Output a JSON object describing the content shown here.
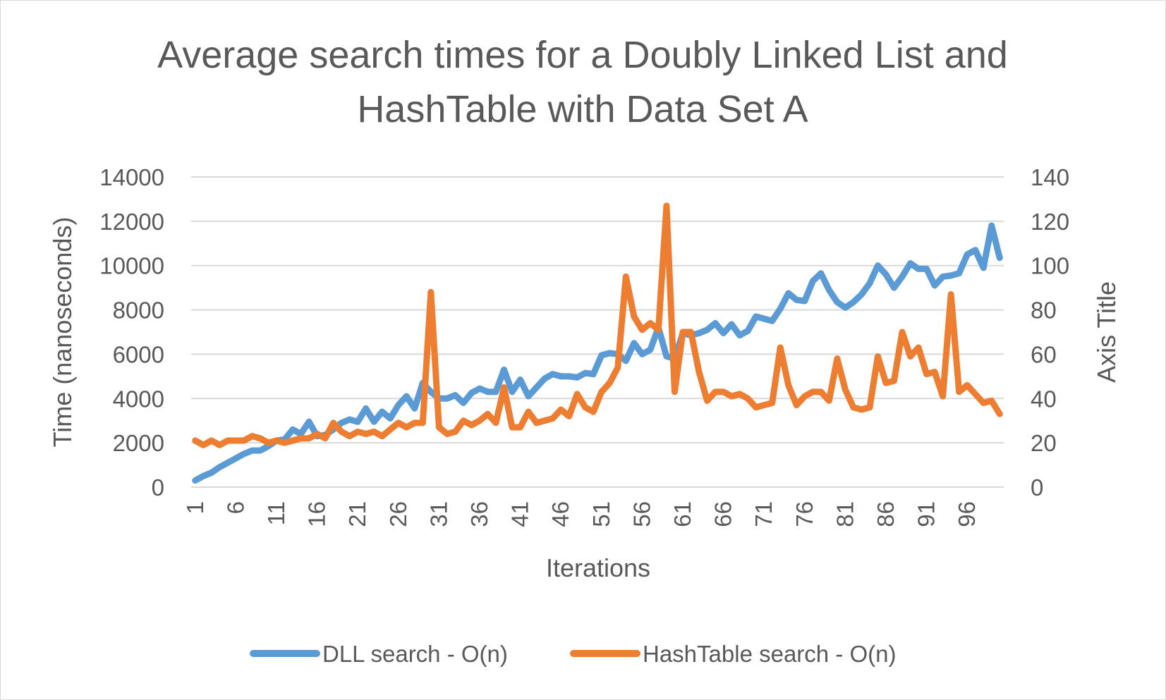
{
  "chart_data": {
    "type": "line",
    "title": "Average search times for a Doubly Linked List and HashTable with Data Set A",
    "title_lines": [
      "Average search times for a Doubly Linked List and",
      "HashTable with Data Set A"
    ],
    "xlabel": "Iterations",
    "ylabel": "Time (nanoseconds)",
    "y2label": "Axis Title",
    "ylim": [
      0,
      14000
    ],
    "y2lim": [
      0,
      140
    ],
    "yticks": [
      "0",
      "2000",
      "4000",
      "6000",
      "8000",
      "10000",
      "12000",
      "14000"
    ],
    "y2ticks": [
      "0",
      "20",
      "40",
      "60",
      "80",
      "100",
      "120",
      "140"
    ],
    "xticks": [
      "1",
      "6",
      "11",
      "16",
      "21",
      "26",
      "31",
      "36",
      "41",
      "46",
      "51",
      "56",
      "61",
      "66",
      "71",
      "76",
      "81",
      "86",
      "91",
      "96"
    ],
    "x_start": 1,
    "x_end": 100,
    "grid": true,
    "legend_position": "bottom",
    "series": [
      {
        "name": "DLL search - O(n)",
        "axis": "left",
        "color": "#5b9bd5",
        "values": [
          300,
          500,
          650,
          900,
          1100,
          1300,
          1500,
          1650,
          1650,
          1850,
          2100,
          2150,
          2600,
          2400,
          2950,
          2300,
          2350,
          2600,
          2900,
          3050,
          2950,
          3550,
          2950,
          3400,
          3100,
          3700,
          4100,
          3550,
          4700,
          4300,
          4000,
          4000,
          4150,
          3800,
          4250,
          4450,
          4300,
          4300,
          5300,
          4300,
          4850,
          4100,
          4500,
          4900,
          5100,
          5000,
          5000,
          4950,
          5150,
          5100,
          5950,
          6050,
          6000,
          5700,
          6500,
          6000,
          6200,
          7200,
          5900,
          5800,
          6950,
          6850,
          6950,
          7100,
          7400,
          6950,
          7350,
          6850,
          7050,
          7700,
          7600,
          7500,
          8050,
          8750,
          8450,
          8400,
          9300,
          9650,
          8900,
          8350,
          8100,
          8350,
          8700,
          9200,
          10000,
          9600,
          9000,
          9500,
          10100,
          9850,
          9850,
          9100,
          9500,
          9550,
          9650,
          10500,
          10700,
          9900,
          11800,
          10350
        ]
      },
      {
        "name": "HashTable search - O(n)",
        "axis": "right",
        "color": "#ed7d31",
        "values": [
          21,
          19,
          21,
          19,
          21,
          21,
          21,
          23,
          22,
          20,
          21,
          20,
          21,
          22,
          22,
          24,
          22,
          29,
          25,
          23,
          25,
          24,
          25,
          23,
          26,
          29,
          27,
          29,
          29,
          88,
          27,
          24,
          25,
          30,
          28,
          30,
          33,
          29,
          45,
          27,
          27,
          34,
          29,
          30,
          31,
          35,
          32,
          42,
          36,
          34,
          43,
          47,
          54,
          95,
          77,
          71,
          74,
          71,
          127,
          43,
          70,
          70,
          52,
          39,
          43,
          43,
          41,
          42,
          40,
          36,
          37,
          38,
          63,
          46,
          37,
          41,
          43,
          43,
          39,
          58,
          44,
          36,
          35,
          36,
          59,
          47,
          48,
          70,
          59,
          63,
          51,
          52,
          41,
          87,
          43,
          46,
          42,
          38,
          39,
          33
        ]
      }
    ]
  }
}
